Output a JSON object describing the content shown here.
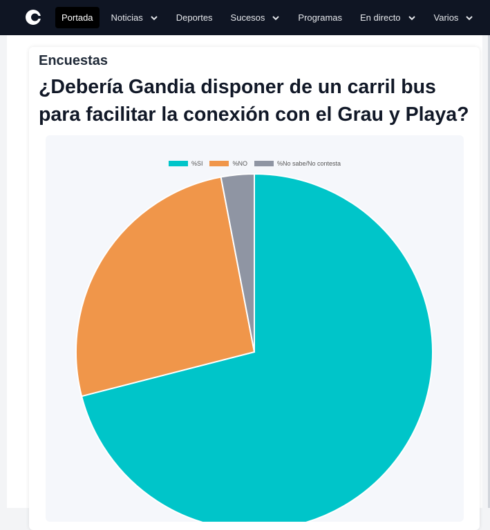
{
  "nav": {
    "items": [
      {
        "label": "Portada",
        "active": true,
        "has_dropdown": false
      },
      {
        "label": "Noticias",
        "active": false,
        "has_dropdown": true
      },
      {
        "label": "Deportes",
        "active": false,
        "has_dropdown": false
      },
      {
        "label": "Sucesos",
        "active": false,
        "has_dropdown": true
      },
      {
        "label": "Programas",
        "active": false,
        "has_dropdown": false
      },
      {
        "label": "En directo",
        "active": false,
        "has_dropdown": true
      },
      {
        "label": "Varios",
        "active": false,
        "has_dropdown": true
      }
    ],
    "logo_icon": "c-logo-icon",
    "dropdown_icon": "chevron-down-icon"
  },
  "article": {
    "section": "Encuestas",
    "title": "¿Debería Gandia disponer de un carril bus para facilitar la conexión con el Grau y Playa?"
  },
  "colors": {
    "nav_bg": "#0f1523",
    "si": "#00c5c9",
    "no": "#f0964a",
    "nsnc": "#8f95a3"
  },
  "chart_data": {
    "type": "pie",
    "categories": [
      "%SI",
      "%NO",
      "%No sabe/No contesta"
    ],
    "values": [
      71,
      26,
      3
    ],
    "legend": "top"
  }
}
